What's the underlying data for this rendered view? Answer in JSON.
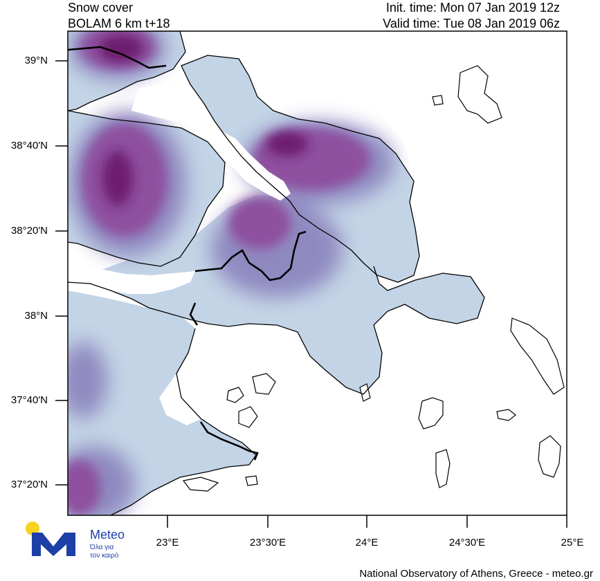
{
  "header": {
    "title_line1": "Snow cover",
    "title_line2": "BOLAM 6 km t+18",
    "init_time": "Init. time: Mon 07 Jan 2019 12z",
    "valid_time": "Valid time: Tue 08 Jan 2019 06z"
  },
  "map": {
    "lat_labels": [
      "39°N",
      "38°40'N",
      "38°20'N",
      "38°N",
      "37°40'N",
      "37°20'N"
    ],
    "lon_labels": [
      "23°E",
      "23°30'E",
      "24°E",
      "24°30'E",
      "25°E"
    ],
    "colors": {
      "sea": "#ffffff",
      "snow_light": "#c3d4e6",
      "snow_low": "#a5b8d8",
      "snow_mid": "#8d86bf",
      "snow_high": "#8e4f9f",
      "snow_max": "#6d1a6e",
      "coast": "#000000"
    }
  },
  "logo": {
    "brand": "Meteo",
    "tagline_line1": "Όλα για",
    "tagline_line2": "τον καιρό",
    "colors": {
      "sun": "#f5d320",
      "letter": "#1d3fa8"
    }
  },
  "footer": {
    "credit": "National Observatory of Athens, Greece - meteo.gr"
  }
}
